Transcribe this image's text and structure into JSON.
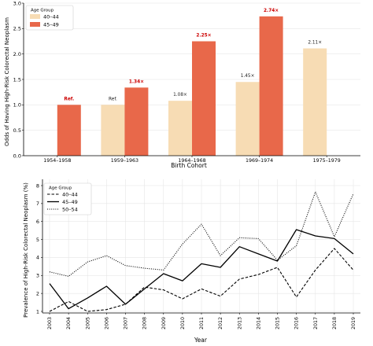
{
  "chart_data": [
    {
      "type": "bar",
      "title": "",
      "xlabel": "Birth Cohort",
      "ylabel": "Odds of Having High-Risk Colorectal Neoplasm",
      "categories": [
        "1954–1958",
        "1959–1963",
        "1964–1968",
        "1969–1974",
        "1975–1979"
      ],
      "ylim": [
        0,
        3.0
      ],
      "yticks": [
        "0.0",
        "0.5",
        "1.0",
        "1.5",
        "2.0",
        "2.5",
        "3.0"
      ],
      "grid": true,
      "legend": {
        "title": "Age Group",
        "position": "top-left"
      },
      "series": [
        {
          "name": "40–44",
          "color": "#f7dcb4",
          "values": [
            null,
            1.0,
            1.08,
            1.45,
            2.11
          ],
          "labels": [
            "",
            "Ref.",
            "1.08×",
            "1.45×",
            "2.11×"
          ]
        },
        {
          "name": "45–49",
          "color": "#e8684a",
          "values": [
            1.0,
            1.34,
            2.25,
            2.74,
            null
          ],
          "labels": [
            "Ref.",
            "1.34×",
            "2.25×",
            "2.74×",
            ""
          ]
        }
      ]
    },
    {
      "type": "line",
      "title": "",
      "xlabel": "Year",
      "ylabel": "Prevalence of High-Risk Colorectal Neoplasm (%)",
      "x": [
        "2003",
        "2004",
        "2005",
        "2006",
        "2007",
        "2008",
        "2009",
        "2010",
        "2011",
        "2012",
        "2013",
        "2014",
        "2015",
        "2016",
        "2017",
        "2018",
        "2019"
      ],
      "ylim": [
        1,
        8
      ],
      "yticks": [
        "1",
        "2",
        "3",
        "4",
        "5",
        "6",
        "7",
        "8"
      ],
      "grid": true,
      "legend": {
        "title": "Age Group",
        "position": "top-left"
      },
      "series": [
        {
          "name": "40–44",
          "style": "dashed",
          "color": "#000000",
          "values": [
            1.0,
            1.55,
            1.0,
            1.1,
            1.4,
            2.35,
            2.2,
            1.7,
            2.25,
            1.85,
            2.8,
            3.05,
            3.45,
            1.8,
            3.3,
            4.5,
            3.3
          ]
        },
        {
          "name": "45–49",
          "style": "solid",
          "color": "#000000",
          "values": [
            2.55,
            1.15,
            1.75,
            2.4,
            1.4,
            2.25,
            3.1,
            2.7,
            3.65,
            3.45,
            4.6,
            4.2,
            3.8,
            5.55,
            5.2,
            5.05,
            4.2
          ]
        },
        {
          "name": "50–54",
          "style": "dotted",
          "color": "#000000",
          "values": [
            3.2,
            2.95,
            3.75,
            4.1,
            3.55,
            3.4,
            3.3,
            4.75,
            5.85,
            4.1,
            5.1,
            5.05,
            3.85,
            4.65,
            7.65,
            5.15,
            7.55
          ]
        }
      ]
    }
  ],
  "colors": {
    "highlight_label": "#cc0000",
    "grid": "#e6e6e6",
    "axis": "#000000"
  }
}
